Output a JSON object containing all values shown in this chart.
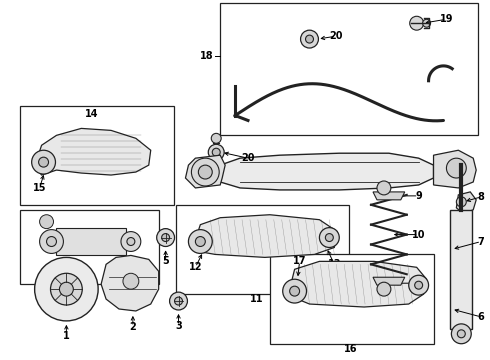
{
  "bg_color": "#ffffff",
  "line_color": "#222222",
  "fig_w": 4.9,
  "fig_h": 3.6,
  "dpi": 100
}
